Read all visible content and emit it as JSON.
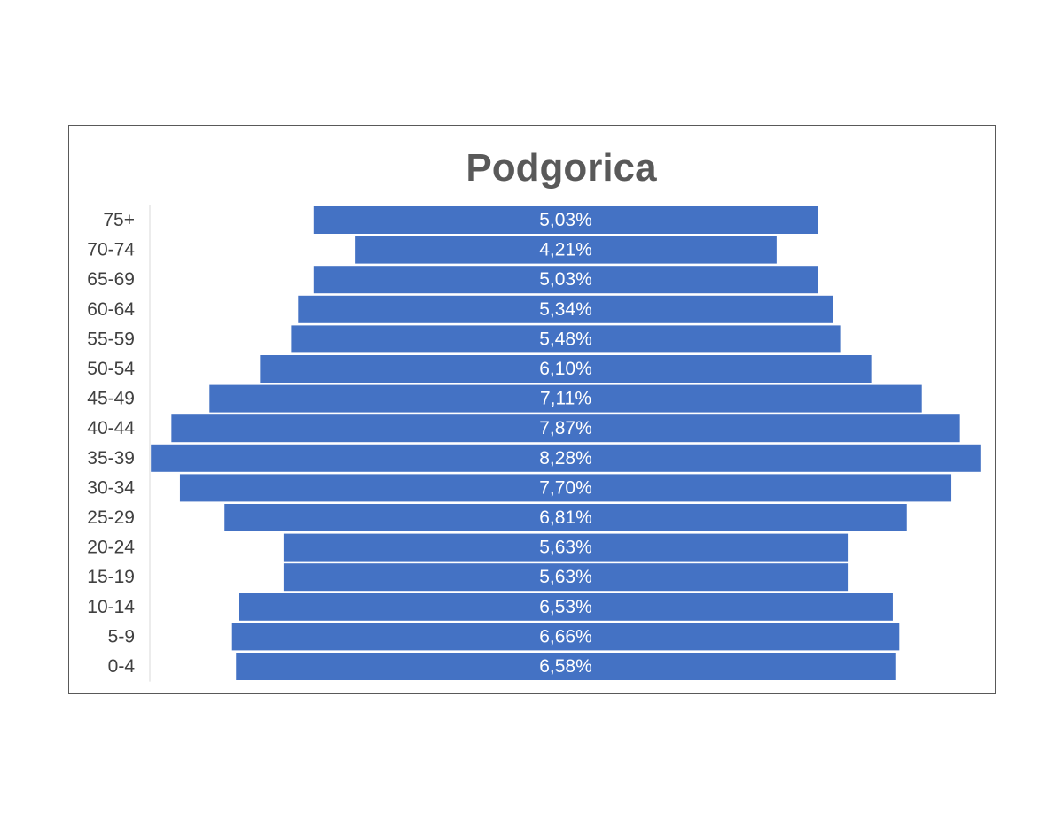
{
  "chart_data": {
    "type": "bar",
    "orientation": "horizontal-centered",
    "title": "Podgorica",
    "categories": [
      "75+",
      "70-74",
      "65-69",
      "60-64",
      "55-59",
      "50-54",
      "45-49",
      "40-44",
      "35-39",
      "30-34",
      "25-29",
      "20-24",
      "15-19",
      "10-14",
      "5-9",
      "0-4"
    ],
    "values": [
      5.03,
      4.21,
      5.03,
      5.34,
      5.48,
      6.1,
      7.11,
      7.87,
      8.28,
      7.7,
      6.81,
      5.63,
      5.63,
      6.53,
      6.66,
      6.58
    ],
    "data_labels": [
      "5,03%",
      "4,21%",
      "5,03%",
      "5,34%",
      "5,48%",
      "6,10%",
      "7,11%",
      "7,87%",
      "8,28%",
      "7,70%",
      "6,81%",
      "5,63%",
      "5,63%",
      "6,53%",
      "6,66%",
      "6,58%"
    ],
    "bar_color": "#4472C4",
    "label_color": "#FFFFFF",
    "title_color": "#595959",
    "grid": false,
    "legend": "none"
  }
}
